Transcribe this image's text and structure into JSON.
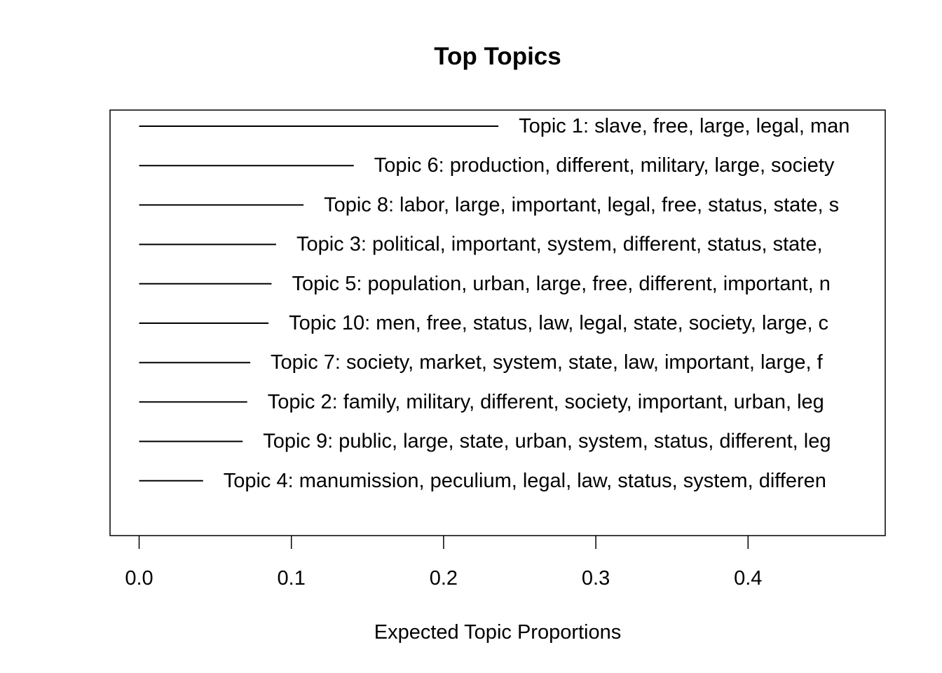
{
  "chart_data": {
    "type": "bar",
    "title": "Top Topics",
    "xlabel": "Expected Topic Proportions",
    "ylabel": "",
    "xlim": [
      -0.019,
      0.49
    ],
    "xticks": [
      0.0,
      0.1,
      0.2,
      0.3,
      0.4
    ],
    "xtick_labels": [
      "0.0",
      "0.1",
      "0.2",
      "0.3",
      "0.4"
    ],
    "grid": false,
    "series": [
      {
        "categories": [
          "Topic 1: slave, free, large, legal, man",
          "Topic 6: production, different, military, large, society",
          "Topic 8: labor, large, important, legal, free, status, state, s",
          "Topic 3: political, important, system, different, status, state,",
          "Topic 5: population, urban, large, free, different, important, n",
          "Topic 10: men, free, status, law, legal, state, society, large, c",
          "Topic 7: society, market, system, state, law, important, large, f",
          "Topic 2: family, military, different, society, important, urban, leg",
          "Topic 9: public, large, state, urban, system, status, different, leg",
          "Topic 4: manumission, peculium, legal, law, status, system, differen"
        ],
        "values": [
          0.236,
          0.141,
          0.108,
          0.09,
          0.087,
          0.085,
          0.073,
          0.071,
          0.068,
          0.042
        ]
      }
    ]
  }
}
